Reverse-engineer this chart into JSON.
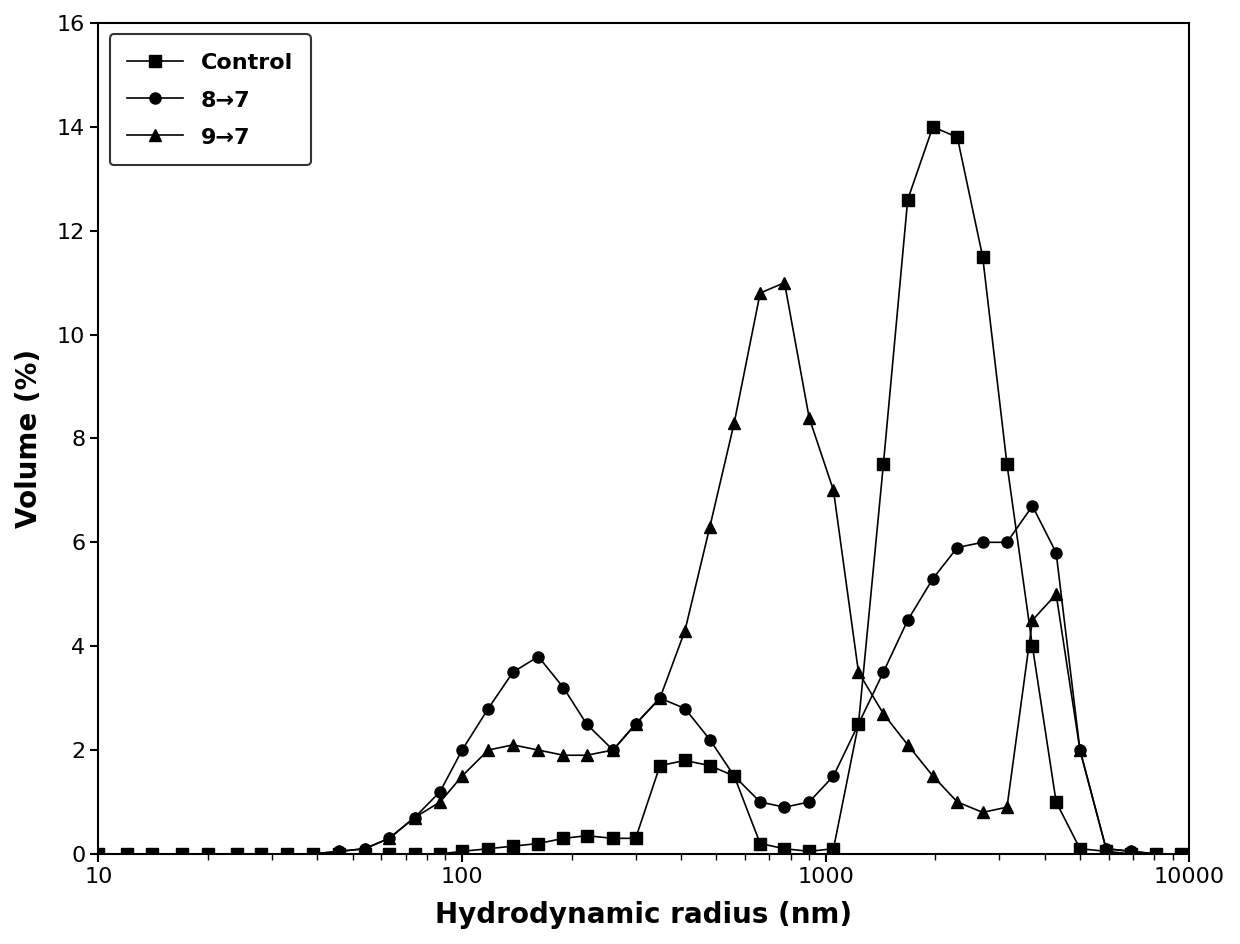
{
  "title": "",
  "xlabel": "Hydrodynamic radius (nm)",
  "ylabel": "Volume (%)",
  "xlim_log": [
    1,
    4
  ],
  "ylim": [
    0,
    16
  ],
  "yticks": [
    0,
    2,
    4,
    6,
    8,
    10,
    12,
    14,
    16
  ],
  "xticks_log": [
    10,
    100,
    1000,
    10000
  ],
  "xtick_labels": [
    "10",
    "100",
    "1000",
    "10000"
  ],
  "background_color": "#ffffff",
  "line_color": "#000000",
  "legend_labels": [
    "Control",
    "8→7",
    "9→7"
  ],
  "control": {
    "x": [
      10,
      12,
      14,
      17,
      20,
      24,
      28,
      33,
      39,
      46,
      54,
      63,
      74,
      87,
      100,
      118,
      138,
      162,
      190,
      220,
      260,
      300,
      350,
      410,
      480,
      560,
      660,
      770,
      900,
      1050,
      1230,
      1440,
      1680,
      1970,
      2300,
      2700,
      3150,
      3700,
      4300,
      5000,
      5900,
      6900,
      8100,
      9500
    ],
    "y": [
      0.0,
      0.0,
      0.0,
      0.0,
      0.0,
      0.0,
      0.0,
      0.0,
      0.0,
      0.0,
      0.0,
      0.0,
      0.0,
      0.0,
      0.05,
      0.1,
      0.15,
      0.2,
      0.3,
      0.35,
      0.3,
      0.3,
      1.7,
      1.8,
      1.7,
      1.5,
      0.2,
      0.1,
      0.05,
      0.1,
      2.5,
      7.5,
      12.6,
      14.0,
      13.8,
      11.5,
      7.5,
      4.0,
      1.0,
      0.1,
      0.05,
      0.0,
      0.0,
      0.0
    ]
  },
  "series_87": {
    "x": [
      10,
      12,
      14,
      17,
      20,
      24,
      28,
      33,
      39,
      46,
      54,
      63,
      74,
      87,
      100,
      118,
      138,
      162,
      190,
      220,
      260,
      300,
      350,
      410,
      480,
      560,
      660,
      770,
      900,
      1050,
      1230,
      1440,
      1680,
      1970,
      2300,
      2700,
      3150,
      3700,
      4300,
      5000,
      5900,
      6900,
      8100,
      9500
    ],
    "y": [
      0.0,
      0.0,
      0.0,
      0.0,
      0.0,
      0.0,
      0.0,
      0.0,
      0.0,
      0.05,
      0.1,
      0.3,
      0.7,
      1.2,
      2.0,
      2.8,
      3.5,
      3.8,
      3.2,
      2.5,
      2.0,
      2.5,
      3.0,
      2.8,
      2.2,
      1.5,
      1.0,
      0.9,
      1.0,
      1.5,
      2.5,
      3.5,
      4.5,
      5.3,
      5.9,
      6.0,
      6.0,
      6.7,
      5.8,
      2.0,
      0.1,
      0.05,
      0.0,
      0.0
    ]
  },
  "series_97": {
    "x": [
      10,
      12,
      14,
      17,
      20,
      24,
      28,
      33,
      39,
      46,
      54,
      63,
      74,
      87,
      100,
      118,
      138,
      162,
      190,
      220,
      260,
      300,
      350,
      410,
      480,
      560,
      660,
      770,
      900,
      1050,
      1230,
      1440,
      1680,
      1970,
      2300,
      2700,
      3150,
      3700,
      4300,
      5000,
      5900,
      6900,
      8100,
      9500
    ],
    "y": [
      0.0,
      0.0,
      0.0,
      0.0,
      0.0,
      0.0,
      0.0,
      0.0,
      0.0,
      0.05,
      0.1,
      0.3,
      0.7,
      1.0,
      1.5,
      2.0,
      2.1,
      2.0,
      1.9,
      1.9,
      2.0,
      2.5,
      3.0,
      4.3,
      6.3,
      8.3,
      10.8,
      11.0,
      8.4,
      7.0,
      3.5,
      2.7,
      2.1,
      1.5,
      1.0,
      0.8,
      0.9,
      4.5,
      5.0,
      2.0,
      0.1,
      0.05,
      0.0,
      0.0
    ]
  }
}
